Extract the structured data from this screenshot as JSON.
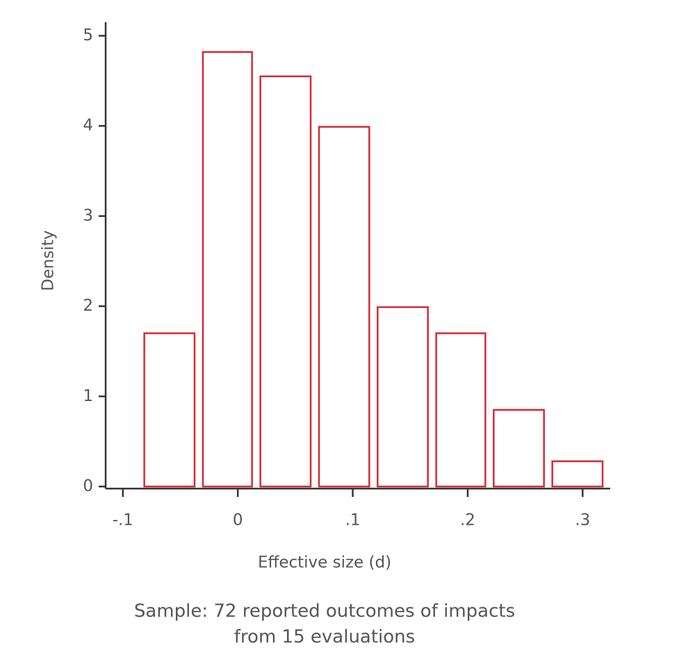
{
  "chart_data": {
    "type": "histogram",
    "x_label": "Effective size (d)",
    "y_label": "Density",
    "caption": [
      "Sample: 72 reported outcomes of impacts",
      "from 15 evaluations"
    ],
    "bins": [
      -0.085,
      -0.034,
      0.016,
      0.067,
      0.118,
      0.169,
      0.219,
      0.27,
      0.321
    ],
    "values": [
      1.7,
      4.82,
      4.55,
      3.99,
      1.99,
      1.7,
      0.85,
      0.28
    ],
    "color": "#d42a35",
    "xlim": [
      -0.115,
      0.324
    ],
    "ylim": [
      0,
      5.15
    ],
    "xticks": [
      {
        "value": -0.1,
        "label": "-.1"
      },
      0,
      {
        "value": 0.1,
        "label": ".1"
      },
      {
        "value": 0.2,
        "label": ".2"
      },
      {
        "value": 0.3,
        "label": ".3"
      }
    ],
    "yticks": [
      0,
      1,
      2,
      3,
      4,
      5
    ]
  }
}
